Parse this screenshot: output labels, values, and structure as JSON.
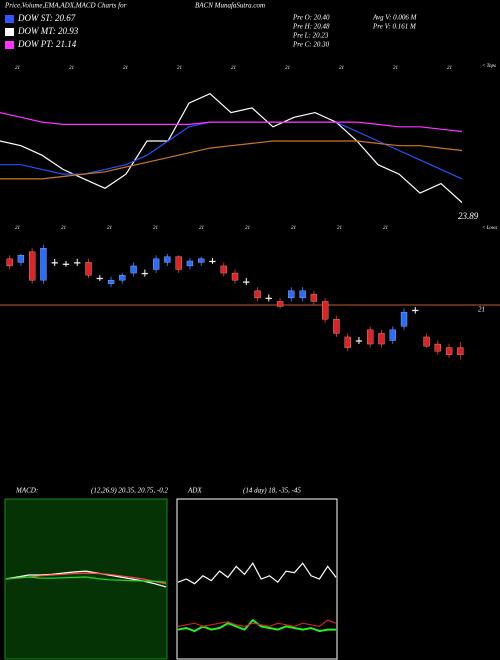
{
  "header": {
    "title": "Price,Volume,EMA,ADX,MACD Charts for",
    "site": "BACN  MunafaSutra.com"
  },
  "legend": [
    {
      "label": "DOW ST: 20.67",
      "color": "#3355ff"
    },
    {
      "label": "DOW MT: 20.93",
      "color": "#ffffff"
    },
    {
      "label": "DOW PT: 21.14",
      "color": "#ff33ff"
    }
  ],
  "info": [
    "Pre  O: 20.40",
    "Pre  H: 20.48",
    "Pre  L: 20.23",
    "Pre  C: 20.30",
    "Avg V: 0.006  M",
    "Pre  V: 0.161 M"
  ],
  "chart_data": [
    {
      "type": "line",
      "ylim": [
        19.5,
        22.5
      ],
      "top_labels": [
        "21",
        "21",
        "21",
        "21",
        "21",
        "21",
        "21",
        "21",
        "21"
      ],
      "bottom_labels": [
        "21",
        "21",
        "21",
        "21",
        "21",
        "21",
        "21",
        "21",
        "21"
      ],
      "tops_label": "< Tops",
      "lows_label": "< Lows",
      "low_value_label": "23.89",
      "series": [
        {
          "color": "#ffffff",
          "values": [
            21.0,
            20.9,
            20.7,
            20.4,
            20.2,
            20.0,
            20.3,
            21.0,
            21.0,
            21.8,
            22.0,
            21.6,
            21.7,
            21.3,
            21.5,
            21.6,
            21.4,
            21.0,
            20.5,
            20.3,
            19.9,
            20.1,
            19.7
          ]
        },
        {
          "color": "#2255ff",
          "values": [
            20.5,
            20.5,
            20.4,
            20.3,
            20.3,
            20.4,
            20.5,
            20.7,
            21.0,
            21.3,
            21.4,
            21.4,
            21.4,
            21.4,
            21.4,
            21.4,
            21.4,
            21.2,
            21.0,
            20.8,
            20.6,
            20.4,
            20.2
          ]
        },
        {
          "color": "#ff33ff",
          "values": [
            21.6,
            21.5,
            21.4,
            21.35,
            21.35,
            21.35,
            21.35,
            21.35,
            21.35,
            21.35,
            21.4,
            21.4,
            21.4,
            21.4,
            21.4,
            21.4,
            21.4,
            21.4,
            21.35,
            21.3,
            21.3,
            21.25,
            21.2
          ]
        },
        {
          "color": "#cc7722",
          "values": [
            20.2,
            20.2,
            20.2,
            20.25,
            20.3,
            20.35,
            20.45,
            20.55,
            20.65,
            20.75,
            20.85,
            20.9,
            20.95,
            21.0,
            21.0,
            21.0,
            21.0,
            21.0,
            20.95,
            20.9,
            20.9,
            20.85,
            20.8
          ]
        }
      ]
    },
    {
      "type": "candlestick",
      "ylim": [
        20,
        22
      ],
      "level": 21,
      "level_color": "#b8602a",
      "up_color": "#2a6cff",
      "down_color": "#e02222",
      "flat_color": "#ffffff",
      "open": [
        21.65,
        21.6,
        21.75,
        21.35,
        21.6,
        21.58,
        21.6,
        21.6,
        21.38,
        21.3,
        21.35,
        21.45,
        21.45,
        21.5,
        21.6,
        21.68,
        21.55,
        21.6,
        21.62,
        21.55,
        21.45,
        21.33,
        21.2,
        21.1,
        21.05,
        21.1,
        21.1,
        21.15,
        21.05,
        20.8,
        20.55,
        20.5,
        20.65,
        20.6,
        20.5,
        20.7,
        20.93,
        20.55,
        20.45,
        20.4,
        20.4
      ],
      "high": [
        21.7,
        21.72,
        21.8,
        21.85,
        21.65,
        21.62,
        21.65,
        21.65,
        21.42,
        21.4,
        21.45,
        21.6,
        21.5,
        21.7,
        21.72,
        21.7,
        21.66,
        21.68,
        21.66,
        21.6,
        21.5,
        21.38,
        21.25,
        21.15,
        21.1,
        21.25,
        21.25,
        21.2,
        21.1,
        20.85,
        20.6,
        20.55,
        20.7,
        20.65,
        20.7,
        20.95,
        20.97,
        20.6,
        20.5,
        20.45,
        20.48
      ],
      "low": [
        21.5,
        21.55,
        21.3,
        21.3,
        21.55,
        21.54,
        21.55,
        21.38,
        21.34,
        21.25,
        21.3,
        21.4,
        21.4,
        21.45,
        21.55,
        21.45,
        21.5,
        21.55,
        21.58,
        21.4,
        21.3,
        21.28,
        21.05,
        21.05,
        20.95,
        21.05,
        21.05,
        21.0,
        20.75,
        20.55,
        20.35,
        20.45,
        20.4,
        20.4,
        20.45,
        20.65,
        20.88,
        20.4,
        20.3,
        20.25,
        20.23
      ],
      "close": [
        21.55,
        21.7,
        21.35,
        21.8,
        21.6,
        21.58,
        21.6,
        21.42,
        21.38,
        21.35,
        21.42,
        21.55,
        21.45,
        21.65,
        21.68,
        21.5,
        21.62,
        21.65,
        21.62,
        21.45,
        21.35,
        21.33,
        21.1,
        21.1,
        20.98,
        21.2,
        21.2,
        21.05,
        20.8,
        20.6,
        20.4,
        20.5,
        20.45,
        20.45,
        20.65,
        20.9,
        20.93,
        20.42,
        20.35,
        20.3,
        20.3
      ]
    },
    {
      "type": "line",
      "title": "MACD:",
      "subtitle": "(12,26,9) 20.35, 20.75, -0.2",
      "ylim": [
        -2,
        2
      ],
      "background": "#063306",
      "border": "#1a8a1a",
      "series": [
        {
          "color": "#ffffff",
          "values": [
            0.0,
            0.05,
            0.1,
            0.1,
            0.12,
            0.15,
            0.18,
            0.2,
            0.15,
            0.1,
            0.05,
            0.0,
            -0.05,
            -0.12,
            -0.2
          ]
        },
        {
          "color": "#ff4444",
          "values": [
            0.0,
            0.02,
            0.05,
            0.08,
            0.1,
            0.12,
            0.14,
            0.15,
            0.14,
            0.12,
            0.08,
            0.04,
            0.0,
            -0.06,
            -0.12
          ]
        },
        {
          "color": "#22dd22",
          "values": [
            0.0,
            0.03,
            0.05,
            0.02,
            0.02,
            0.03,
            0.04,
            0.05,
            0.01,
            -0.02,
            -0.03,
            -0.04,
            -0.05,
            -0.06,
            -0.08
          ]
        }
      ]
    },
    {
      "type": "line",
      "title": "ADX",
      "subtitle": "(14 day) 18, -35, -45",
      "ylim": [
        0,
        100
      ],
      "background": "#000000",
      "border": "#ffffff",
      "series": [
        {
          "color": "#ffffff",
          "values": [
            48,
            50,
            47,
            52,
            49,
            55,
            51,
            58,
            53,
            60,
            50,
            52,
            48,
            55,
            54,
            60,
            52,
            50,
            58,
            51
          ]
        },
        {
          "color": "#22ee22",
          "values": [
            18,
            19,
            17,
            20,
            18,
            19,
            22,
            20,
            18,
            24,
            20,
            19,
            18,
            20,
            19,
            18,
            19,
            17,
            18,
            18
          ]
        },
        {
          "color": "#cc2222",
          "values": [
            20,
            21,
            22,
            20,
            21,
            22,
            23,
            21,
            20,
            22,
            21,
            20,
            22,
            21,
            20,
            22,
            21,
            20,
            24,
            22
          ]
        }
      ]
    }
  ]
}
